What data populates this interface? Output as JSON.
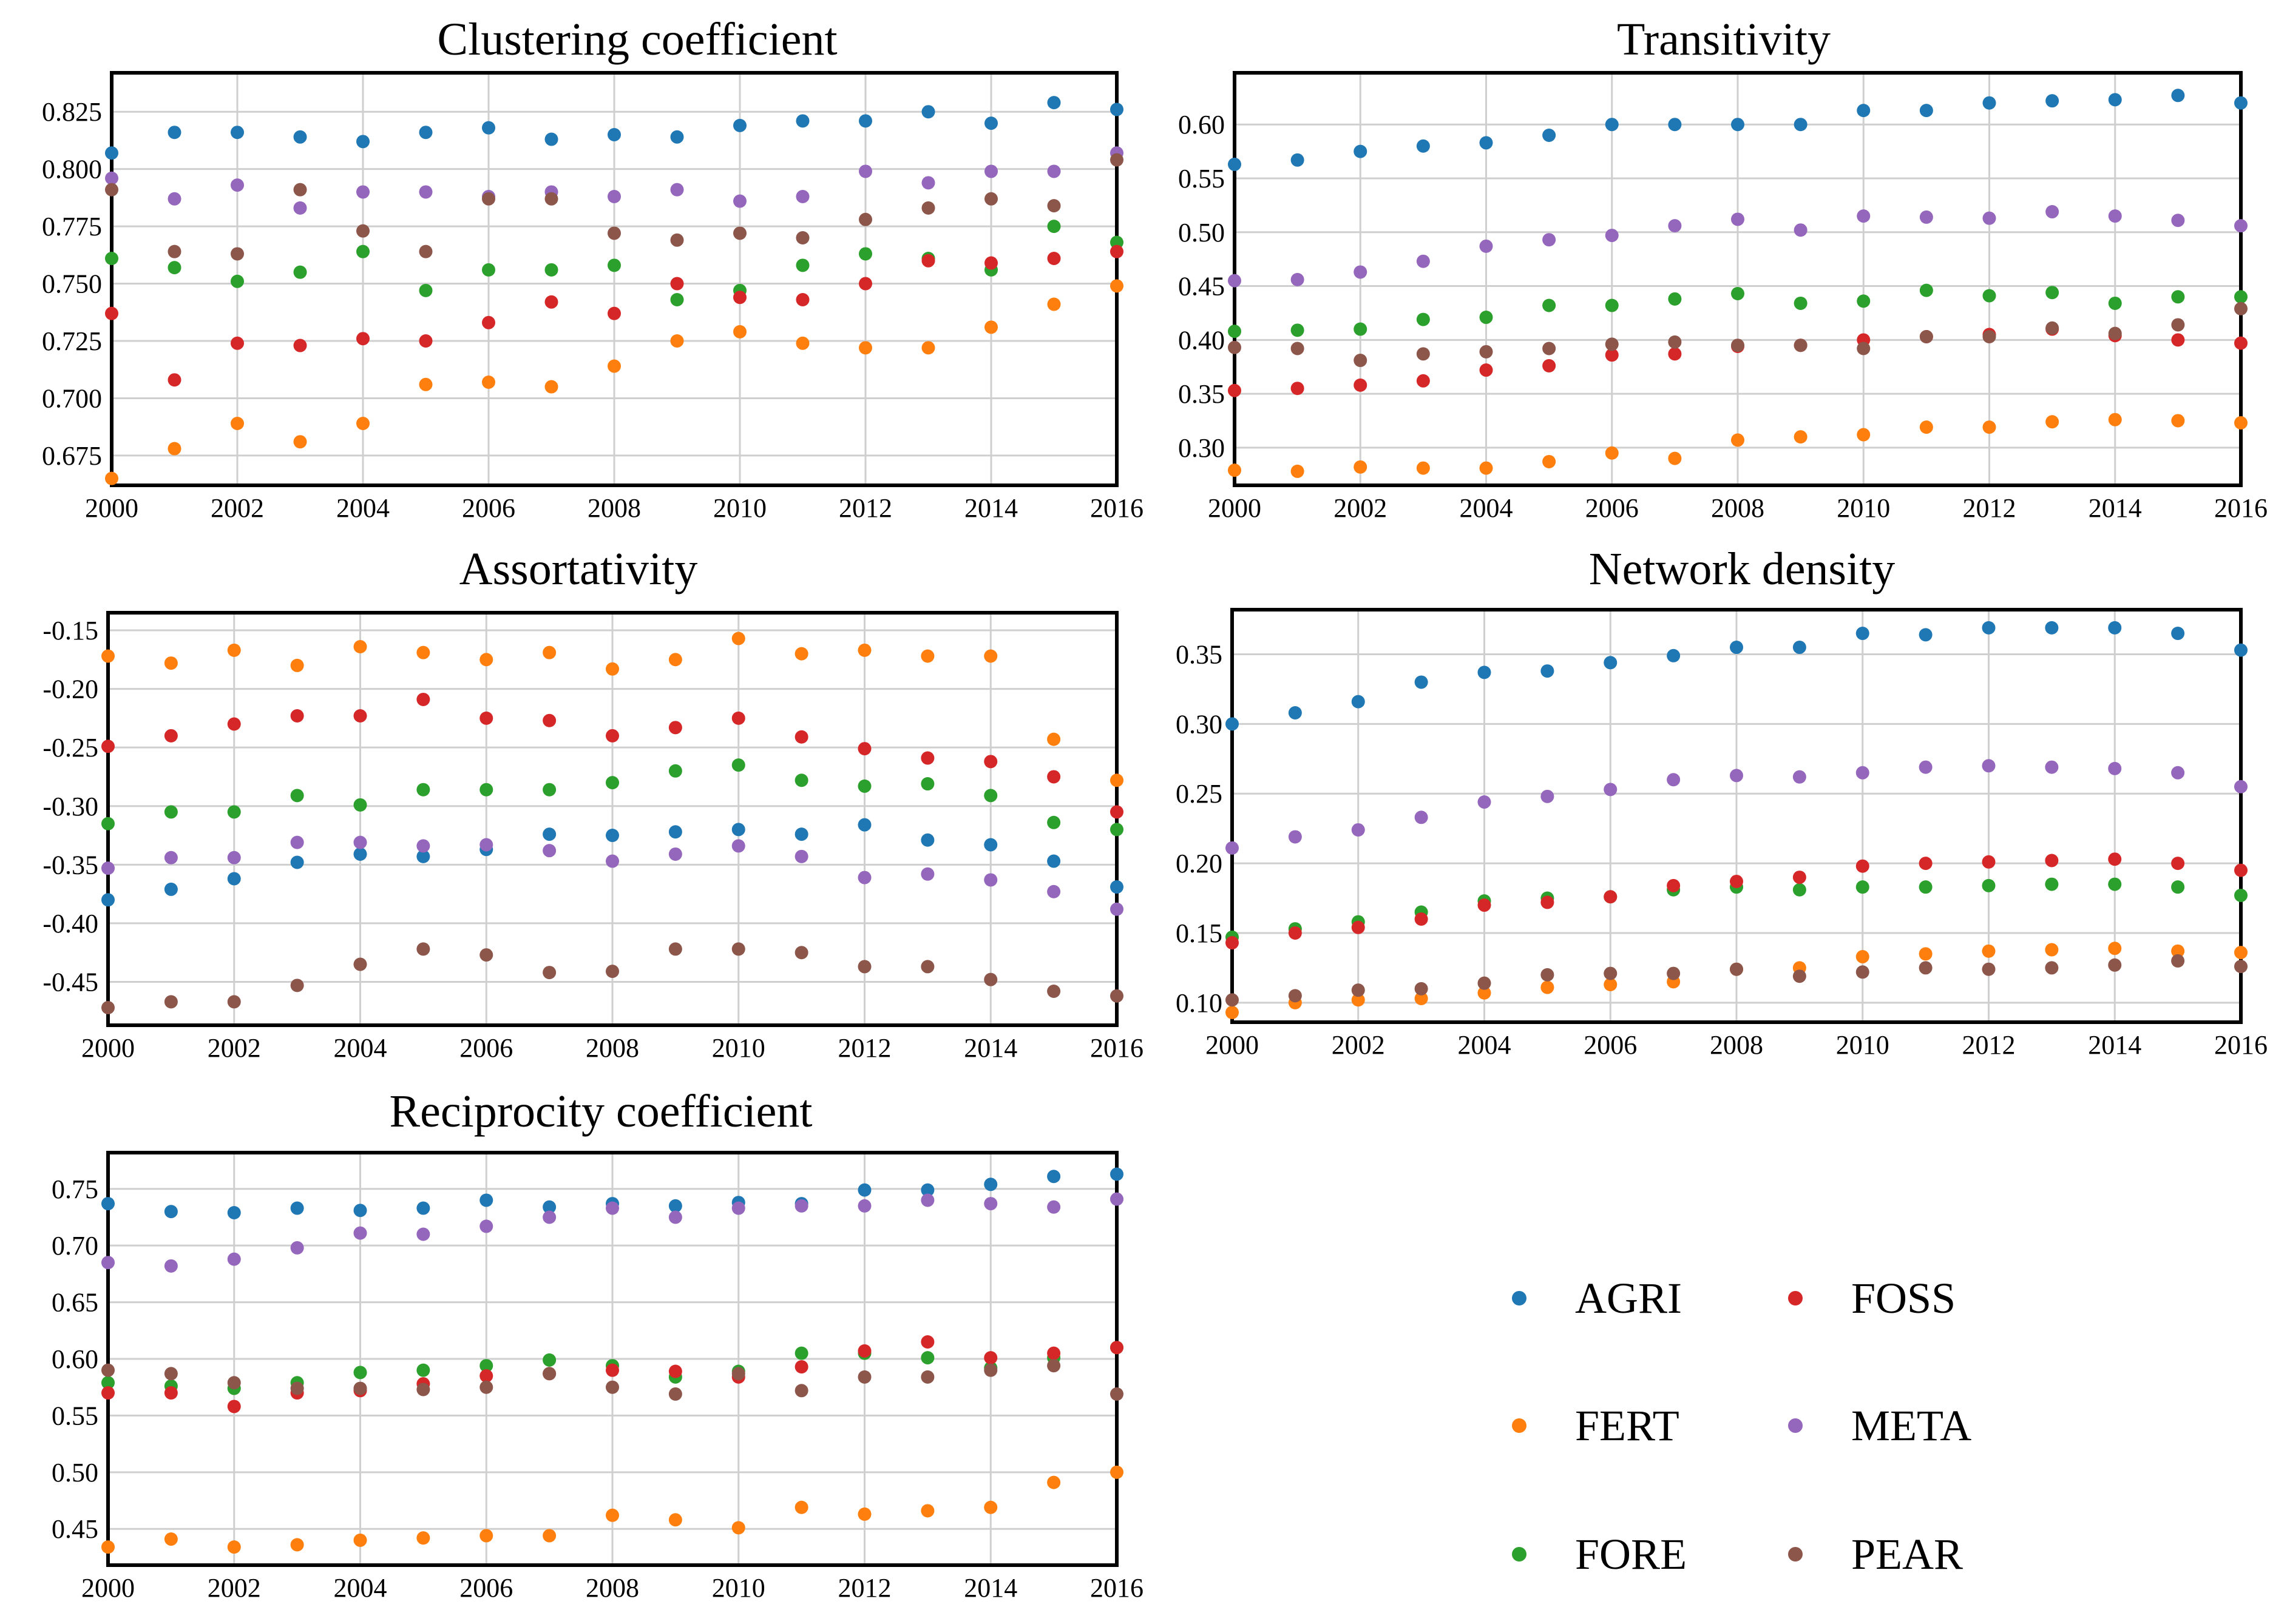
{
  "chart_data": [
    {
      "type": "scatter",
      "title": "Clustering coefficient",
      "x": [
        2000,
        2001,
        2002,
        2003,
        2004,
        2005,
        2006,
        2007,
        2008,
        2009,
        2010,
        2011,
        2012,
        2013,
        2014,
        2015,
        2016
      ],
      "xticks": [
        "2000",
        "2002",
        "2004",
        "2006",
        "2008",
        "2010",
        "2012",
        "2014",
        "2016"
      ],
      "yticks": [
        "0.825",
        "0.800",
        "0.775",
        "0.750",
        "0.725",
        "0.700",
        "0.675"
      ],
      "xlim": [
        2000,
        2016
      ],
      "ylim": [
        0.662,
        0.842
      ],
      "grid": true,
      "series": [
        {
          "name": "AGRI",
          "values": [
            0.807,
            0.816,
            0.816,
            0.814,
            0.812,
            0.816,
            0.818,
            0.813,
            0.815,
            0.814,
            0.819,
            0.821,
            0.821,
            0.825,
            0.82,
            0.829,
            0.826
          ]
        },
        {
          "name": "FERT",
          "values": [
            0.665,
            0.678,
            0.689,
            0.681,
            0.689,
            0.706,
            0.707,
            0.705,
            0.714,
            0.725,
            0.729,
            0.724,
            0.722,
            0.722,
            0.731,
            0.741,
            0.749
          ]
        },
        {
          "name": "FORE",
          "values": [
            0.761,
            0.757,
            0.751,
            0.755,
            0.764,
            0.747,
            0.756,
            0.756,
            0.758,
            0.743,
            0.747,
            0.758,
            0.763,
            0.761,
            0.756,
            0.775,
            0.768
          ]
        },
        {
          "name": "FOSS",
          "values": [
            0.737,
            0.708,
            0.724,
            0.723,
            0.726,
            0.725,
            0.733,
            0.742,
            0.737,
            0.75,
            0.744,
            0.743,
            0.75,
            0.76,
            0.759,
            0.761,
            0.764
          ]
        },
        {
          "name": "META",
          "values": [
            0.796,
            0.787,
            0.793,
            0.783,
            0.79,
            0.79,
            0.788,
            0.79,
            0.788,
            0.791,
            0.786,
            0.788,
            0.799,
            0.794,
            0.799,
            0.799,
            0.807
          ]
        },
        {
          "name": "PEAR",
          "values": [
            0.791,
            0.764,
            0.763,
            0.791,
            0.773,
            0.764,
            0.787,
            0.787,
            0.772,
            0.769,
            0.772,
            0.77,
            0.778,
            0.783,
            0.787,
            0.784,
            0.804
          ]
        }
      ]
    },
    {
      "type": "scatter",
      "title": "Transitivity",
      "x": [
        2000,
        2001,
        2002,
        2003,
        2004,
        2005,
        2006,
        2007,
        2008,
        2009,
        2010,
        2011,
        2012,
        2013,
        2014,
        2015,
        2016
      ],
      "xticks": [
        "2000",
        "2002",
        "2004",
        "2006",
        "2008",
        "2010",
        "2012",
        "2014",
        "2016"
      ],
      "yticks": [
        "0.60",
        "0.55",
        "0.50",
        "0.45",
        "0.40",
        "0.35",
        "0.30"
      ],
      "xlim": [
        2000,
        2016
      ],
      "ylim": [
        0.265,
        0.648
      ],
      "grid": true,
      "series": [
        {
          "name": "AGRI",
          "values": [
            0.563,
            0.567,
            0.575,
            0.58,
            0.583,
            0.59,
            0.6,
            0.6,
            0.6,
            0.6,
            0.613,
            0.613,
            0.62,
            0.622,
            0.623,
            0.627,
            0.62
          ]
        },
        {
          "name": "FERT",
          "values": [
            0.279,
            0.278,
            0.282,
            0.281,
            0.281,
            0.287,
            0.295,
            0.29,
            0.307,
            0.31,
            0.312,
            0.319,
            0.319,
            0.324,
            0.326,
            0.325,
            0.323
          ]
        },
        {
          "name": "FORE",
          "values": [
            0.408,
            0.409,
            0.41,
            0.419,
            0.421,
            0.432,
            0.432,
            0.438,
            0.443,
            0.434,
            0.436,
            0.446,
            0.441,
            0.444,
            0.434,
            0.44,
            0.44
          ]
        },
        {
          "name": "FOSS",
          "values": [
            0.353,
            0.355,
            0.358,
            0.362,
            0.372,
            0.376,
            0.386,
            0.387,
            0.394,
            0.395,
            0.4,
            0.403,
            0.405,
            0.41,
            0.404,
            0.4,
            0.397
          ]
        },
        {
          "name": "META",
          "values": [
            0.455,
            0.456,
            0.463,
            0.473,
            0.487,
            0.493,
            0.497,
            0.506,
            0.512,
            0.502,
            0.515,
            0.514,
            0.513,
            0.519,
            0.515,
            0.511,
            0.506
          ]
        },
        {
          "name": "PEAR",
          "values": [
            0.393,
            0.392,
            0.381,
            0.387,
            0.389,
            0.392,
            0.396,
            0.398,
            0.395,
            0.395,
            0.392,
            0.403,
            0.403,
            0.411,
            0.406,
            0.414,
            0.429
          ]
        }
      ]
    },
    {
      "type": "scatter",
      "title": "Assortativity",
      "x": [
        2000,
        2001,
        2002,
        2003,
        2004,
        2005,
        2006,
        2007,
        2008,
        2009,
        2010,
        2011,
        2012,
        2013,
        2014,
        2015,
        2016
      ],
      "xticks": [
        "2000",
        "2002",
        "2004",
        "2006",
        "2008",
        "2010",
        "2012",
        "2014",
        "2016"
      ],
      "yticks": [
        "-0.15",
        "-0.20",
        "-0.25",
        "-0.30",
        "-0.35",
        "-0.40",
        "-0.45"
      ],
      "xlim": [
        2000,
        2016
      ],
      "ylim": [
        -0.487,
        -0.135
      ],
      "grid": true,
      "series": [
        {
          "name": "AGRI",
          "values": [
            -0.38,
            -0.371,
            -0.362,
            -0.348,
            -0.341,
            -0.343,
            -0.337,
            -0.324,
            -0.325,
            -0.322,
            -0.32,
            -0.324,
            -0.316,
            -0.329,
            -0.333,
            -0.347,
            -0.369
          ]
        },
        {
          "name": "FERT",
          "values": [
            -0.172,
            -0.178,
            -0.167,
            -0.18,
            -0.164,
            -0.169,
            -0.175,
            -0.169,
            -0.183,
            -0.175,
            -0.157,
            -0.17,
            -0.167,
            -0.172,
            -0.172,
            -0.243,
            -0.278
          ]
        },
        {
          "name": "FORE",
          "values": [
            -0.315,
            -0.305,
            -0.305,
            -0.291,
            -0.299,
            -0.286,
            -0.286,
            -0.286,
            -0.28,
            -0.27,
            -0.265,
            -0.278,
            -0.283,
            -0.281,
            -0.291,
            -0.314,
            -0.32
          ]
        },
        {
          "name": "FOSS",
          "values": [
            -0.249,
            -0.24,
            -0.23,
            -0.223,
            -0.223,
            -0.209,
            -0.225,
            -0.227,
            -0.24,
            -0.233,
            -0.225,
            -0.241,
            -0.251,
            -0.259,
            -0.262,
            -0.275,
            -0.305
          ]
        },
        {
          "name": "META",
          "values": [
            -0.353,
            -0.344,
            -0.344,
            -0.331,
            -0.331,
            -0.334,
            -0.333,
            -0.338,
            -0.347,
            -0.341,
            -0.334,
            -0.343,
            -0.361,
            -0.358,
            -0.363,
            -0.373,
            -0.388
          ]
        },
        {
          "name": "PEAR",
          "values": [
            -0.472,
            -0.467,
            -0.467,
            -0.453,
            -0.435,
            -0.422,
            -0.427,
            -0.442,
            -0.441,
            -0.422,
            -0.422,
            -0.425,
            -0.437,
            -0.437,
            -0.448,
            -0.458,
            -0.462
          ]
        }
      ]
    },
    {
      "type": "scatter",
      "title": "Network density",
      "x": [
        2000,
        2001,
        2002,
        2003,
        2004,
        2005,
        2006,
        2007,
        2008,
        2009,
        2010,
        2011,
        2012,
        2013,
        2014,
        2015,
        2016
      ],
      "xticks": [
        "2000",
        "2002",
        "2004",
        "2006",
        "2008",
        "2010",
        "2012",
        "2014",
        "2016"
      ],
      "yticks": [
        "0.35",
        "0.30",
        "0.25",
        "0.20",
        "0.15",
        "0.10"
      ],
      "xlim": [
        2000,
        2016
      ],
      "ylim": [
        0.086,
        0.382
      ],
      "grid": true,
      "series": [
        {
          "name": "AGRI",
          "values": [
            0.3,
            0.308,
            0.316,
            0.33,
            0.337,
            0.338,
            0.344,
            0.349,
            0.355,
            0.355,
            0.365,
            0.364,
            0.369,
            0.369,
            0.369,
            0.365,
            0.353
          ]
        },
        {
          "name": "FERT",
          "values": [
            0.093,
            0.1,
            0.102,
            0.103,
            0.107,
            0.111,
            0.113,
            0.115,
            0.124,
            0.125,
            0.133,
            0.135,
            0.137,
            0.138,
            0.139,
            0.137,
            0.136
          ]
        },
        {
          "name": "FORE",
          "values": [
            0.147,
            0.153,
            0.158,
            0.165,
            0.173,
            0.175,
            0.176,
            0.181,
            0.183,
            0.181,
            0.183,
            0.183,
            0.184,
            0.185,
            0.185,
            0.183,
            0.177
          ]
        },
        {
          "name": "FOSS",
          "values": [
            0.143,
            0.15,
            0.154,
            0.16,
            0.17,
            0.172,
            0.176,
            0.184,
            0.187,
            0.19,
            0.198,
            0.2,
            0.201,
            0.202,
            0.203,
            0.2,
            0.195
          ]
        },
        {
          "name": "META",
          "values": [
            0.211,
            0.219,
            0.224,
            0.233,
            0.244,
            0.248,
            0.253,
            0.26,
            0.263,
            0.262,
            0.265,
            0.269,
            0.27,
            0.269,
            0.268,
            0.265,
            0.255
          ]
        },
        {
          "name": "PEAR",
          "values": [
            0.102,
            0.105,
            0.109,
            0.11,
            0.114,
            0.12,
            0.121,
            0.121,
            0.124,
            0.119,
            0.122,
            0.125,
            0.124,
            0.125,
            0.127,
            0.13,
            0.126
          ]
        }
      ]
    },
    {
      "type": "scatter",
      "title": "Reciprocity coefficient",
      "x": [
        2000,
        2001,
        2002,
        2003,
        2004,
        2005,
        2006,
        2007,
        2008,
        2009,
        2010,
        2011,
        2012,
        2013,
        2014,
        2015,
        2016
      ],
      "xticks": [
        "2000",
        "2002",
        "2004",
        "2006",
        "2008",
        "2010",
        "2012",
        "2014",
        "2016"
      ],
      "yticks": [
        "0.75",
        "0.70",
        "0.65",
        "0.60",
        "0.55",
        "0.50",
        "0.45"
      ],
      "xlim": [
        2000,
        2016
      ],
      "ylim": [
        0.418,
        0.782
      ],
      "grid": true,
      "series": [
        {
          "name": "AGRI",
          "values": [
            0.737,
            0.73,
            0.729,
            0.733,
            0.731,
            0.733,
            0.74,
            0.734,
            0.737,
            0.735,
            0.738,
            0.737,
            0.749,
            0.749,
            0.754,
            0.761,
            0.763
          ]
        },
        {
          "name": "FERT",
          "values": [
            0.434,
            0.441,
            0.434,
            0.436,
            0.44,
            0.442,
            0.444,
            0.444,
            0.462,
            0.458,
            0.451,
            0.469,
            0.463,
            0.466,
            0.469,
            0.491,
            0.5
          ]
        },
        {
          "name": "FORE",
          "values": [
            0.579,
            0.576,
            0.574,
            0.579,
            0.588,
            0.59,
            0.594,
            0.599,
            0.594,
            0.584,
            0.589,
            0.605,
            0.605,
            0.601,
            0.592,
            0.601,
            0.61
          ]
        },
        {
          "name": "FOSS",
          "values": [
            0.57,
            0.57,
            0.558,
            0.57,
            0.572,
            0.578,
            0.585,
            0.587,
            0.59,
            0.589,
            0.584,
            0.593,
            0.607,
            0.615,
            0.601,
            0.605,
            0.61
          ]
        },
        {
          "name": "META",
          "values": [
            0.685,
            0.682,
            0.688,
            0.698,
            0.711,
            0.71,
            0.717,
            0.725,
            0.733,
            0.725,
            0.733,
            0.735,
            0.735,
            0.74,
            0.737,
            0.734,
            0.741
          ]
        },
        {
          "name": "PEAR",
          "values": [
            0.59,
            0.587,
            0.579,
            0.574,
            0.574,
            0.573,
            0.575,
            0.587,
            0.575,
            0.569,
            0.587,
            0.572,
            0.584,
            0.584,
            0.59,
            0.594,
            0.569
          ]
        }
      ]
    }
  ],
  "legend": [
    {
      "name": "AGRI",
      "color": "#1f77b4"
    },
    {
      "name": "FOSS",
      "color": "#d62728"
    },
    {
      "name": "FERT",
      "color": "#ff7f0e"
    },
    {
      "name": "META",
      "color": "#9467bd"
    },
    {
      "name": "FORE",
      "color": "#2ca02c"
    },
    {
      "name": "PEAR",
      "color": "#8c564b"
    }
  ],
  "series_colors": {
    "AGRI": "#1f77b4",
    "FERT": "#ff7f0e",
    "FORE": "#2ca02c",
    "FOSS": "#d62728",
    "META": "#9467bd",
    "PEAR": "#8c564b"
  }
}
